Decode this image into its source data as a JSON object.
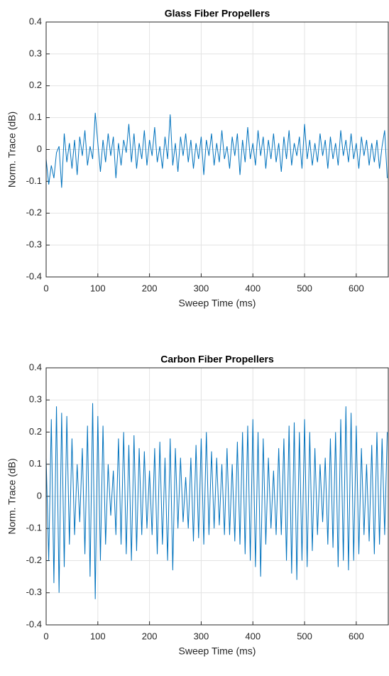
{
  "chart_data": [
    {
      "type": "line",
      "title": "Glass Fiber Propellers",
      "xlabel": "Sweep Time (ms)",
      "ylabel": "Norm. Trace (dB)",
      "x": [
        0,
        5,
        10,
        15,
        20,
        25,
        30,
        35,
        40,
        45,
        50,
        55,
        60,
        65,
        70,
        75,
        80,
        85,
        90,
        95,
        100,
        105,
        110,
        115,
        120,
        125,
        130,
        135,
        140,
        145,
        150,
        155,
        160,
        165,
        170,
        175,
        180,
        185,
        190,
        195,
        200,
        205,
        210,
        215,
        220,
        225,
        230,
        235,
        240,
        245,
        250,
        255,
        260,
        265,
        270,
        275,
        280,
        285,
        290,
        295,
        300,
        305,
        310,
        315,
        320,
        325,
        330,
        335,
        340,
        345,
        350,
        355,
        360,
        365,
        370,
        375,
        380,
        385,
        390,
        395,
        400,
        405,
        410,
        415,
        420,
        425,
        430,
        435,
        440,
        445,
        450,
        455,
        460,
        465,
        470,
        475,
        480,
        485,
        490,
        495,
        500,
        505,
        510,
        515,
        520,
        525,
        530,
        535,
        540,
        545,
        550,
        555,
        560,
        565,
        570,
        575,
        580,
        585,
        590,
        595,
        600,
        605,
        610,
        615,
        620,
        625,
        630,
        635,
        640,
        645,
        650,
        655,
        660
      ],
      "values": [
        -0.03,
        -0.11,
        -0.05,
        -0.09,
        -0.01,
        0.01,
        -0.12,
        0.05,
        -0.04,
        0.02,
        -0.06,
        0.03,
        -0.08,
        0.04,
        -0.02,
        0.06,
        -0.05,
        0.01,
        -0.03,
        0.115,
        0.02,
        -0.07,
        0.03,
        -0.04,
        0.05,
        -0.02,
        0.04,
        -0.09,
        0.02,
        -0.05,
        0.03,
        -0.01,
        0.08,
        -0.04,
        0.05,
        -0.06,
        0.02,
        -0.03,
        0.06,
        -0.05,
        0.03,
        -0.02,
        0.07,
        -0.04,
        0.01,
        -0.06,
        0.04,
        -0.03,
        0.11,
        -0.05,
        0.02,
        -0.07,
        0.04,
        -0.02,
        0.05,
        -0.04,
        0.03,
        -0.06,
        0.02,
        -0.03,
        0.04,
        -0.08,
        0.03,
        -0.02,
        0.05,
        -0.05,
        0.02,
        -0.04,
        0.06,
        -0.03,
        0.01,
        -0.06,
        0.04,
        -0.02,
        0.05,
        -0.08,
        0.03,
        -0.04,
        0.07,
        -0.03,
        0.02,
        -0.05,
        0.06,
        -0.02,
        0.04,
        -0.06,
        0.03,
        -0.03,
        0.05,
        -0.04,
        0.02,
        -0.07,
        0.04,
        -0.03,
        0.06,
        -0.05,
        0.02,
        -0.02,
        0.04,
        -0.06,
        0.08,
        -0.03,
        0.03,
        -0.05,
        0.02,
        -0.04,
        0.05,
        -0.02,
        0.03,
        -0.06,
        0.04,
        -0.03,
        0.02,
        -0.05,
        0.06,
        -0.02,
        0.03,
        -0.04,
        0.05,
        -0.03,
        0.02,
        -0.06,
        0.04,
        -0.02,
        0.03,
        -0.05,
        0.02,
        -0.04,
        0.03,
        -0.06,
        0.01,
        0.06,
        -0.09
      ],
      "color": "#0072bd",
      "xlim": [
        0,
        662
      ],
      "ylim": [
        -0.4,
        0.4
      ],
      "xticks": [
        0,
        100,
        200,
        300,
        400,
        500,
        600
      ],
      "yticks": [
        -0.4,
        -0.3,
        -0.2,
        -0.1,
        0,
        0.1,
        0.2,
        0.3,
        0.4
      ],
      "grid": true
    },
    {
      "type": "line",
      "title": "Carbon Fiber Propellers",
      "xlabel": "Sweep Time (ms)",
      "ylabel": "Norm. Trace (dB)",
      "x": [
        0,
        5,
        10,
        15,
        20,
        25,
        30,
        35,
        40,
        45,
        50,
        55,
        60,
        65,
        70,
        75,
        80,
        85,
        90,
        95,
        100,
        105,
        110,
        115,
        120,
        125,
        130,
        135,
        140,
        145,
        150,
        155,
        160,
        165,
        170,
        175,
        180,
        185,
        190,
        195,
        200,
        205,
        210,
        215,
        220,
        225,
        230,
        235,
        240,
        245,
        250,
        255,
        260,
        265,
        270,
        275,
        280,
        285,
        290,
        295,
        300,
        305,
        310,
        315,
        320,
        325,
        330,
        335,
        340,
        345,
        350,
        355,
        360,
        365,
        370,
        375,
        380,
        385,
        390,
        395,
        400,
        405,
        410,
        415,
        420,
        425,
        430,
        435,
        440,
        445,
        450,
        455,
        460,
        465,
        470,
        475,
        480,
        485,
        490,
        495,
        500,
        505,
        510,
        515,
        520,
        525,
        530,
        535,
        540,
        545,
        550,
        555,
        560,
        565,
        570,
        575,
        580,
        585,
        590,
        595,
        600,
        605,
        610,
        615,
        620,
        625,
        630,
        635,
        640,
        645,
        650,
        655,
        660
      ],
      "values": [
        0.12,
        -0.2,
        0.24,
        -0.27,
        0.28,
        -0.3,
        0.26,
        -0.22,
        0.25,
        -0.15,
        0.18,
        -0.12,
        0.1,
        -0.08,
        0.15,
        -0.18,
        0.22,
        -0.25,
        0.29,
        -0.32,
        0.25,
        -0.2,
        0.22,
        -0.15,
        0.1,
        -0.06,
        0.08,
        -0.12,
        0.18,
        -0.15,
        0.2,
        -0.18,
        0.16,
        -0.2,
        0.19,
        -0.17,
        0.15,
        -0.12,
        0.14,
        -0.1,
        0.08,
        -0.12,
        0.15,
        -0.18,
        0.17,
        -0.15,
        0.12,
        -0.2,
        0.18,
        -0.23,
        0.15,
        -0.1,
        0.12,
        -0.08,
        0.06,
        -0.1,
        0.12,
        -0.14,
        0.16,
        -0.13,
        0.18,
        -0.15,
        0.2,
        -0.12,
        0.14,
        -0.1,
        0.12,
        -0.09,
        0.1,
        -0.12,
        0.15,
        -0.12,
        0.1,
        -0.14,
        0.17,
        -0.15,
        0.2,
        -0.18,
        0.22,
        -0.2,
        0.24,
        -0.22,
        0.2,
        -0.25,
        0.18,
        -0.15,
        0.12,
        -0.1,
        0.08,
        -0.12,
        0.15,
        -0.12,
        0.18,
        -0.2,
        0.22,
        -0.24,
        0.23,
        -0.26,
        0.2,
        -0.2,
        0.24,
        -0.22,
        0.2,
        -0.17,
        0.15,
        -0.12,
        0.1,
        -0.08,
        0.12,
        -0.15,
        0.18,
        -0.16,
        0.2,
        -0.22,
        0.24,
        -0.2,
        0.28,
        -0.23,
        0.26,
        -0.2,
        0.22,
        -0.18,
        0.15,
        -0.12,
        0.1,
        -0.14,
        0.16,
        -0.18,
        0.2,
        -0.15,
        0.18,
        -0.12,
        0.2
      ],
      "color": "#0072bd",
      "xlim": [
        0,
        662
      ],
      "ylim": [
        -0.4,
        0.4
      ],
      "xticks": [
        0,
        100,
        200,
        300,
        400,
        500,
        600
      ],
      "yticks": [
        -0.4,
        -0.3,
        -0.2,
        -0.1,
        0,
        0.1,
        0.2,
        0.3,
        0.4
      ],
      "grid": true
    }
  ]
}
